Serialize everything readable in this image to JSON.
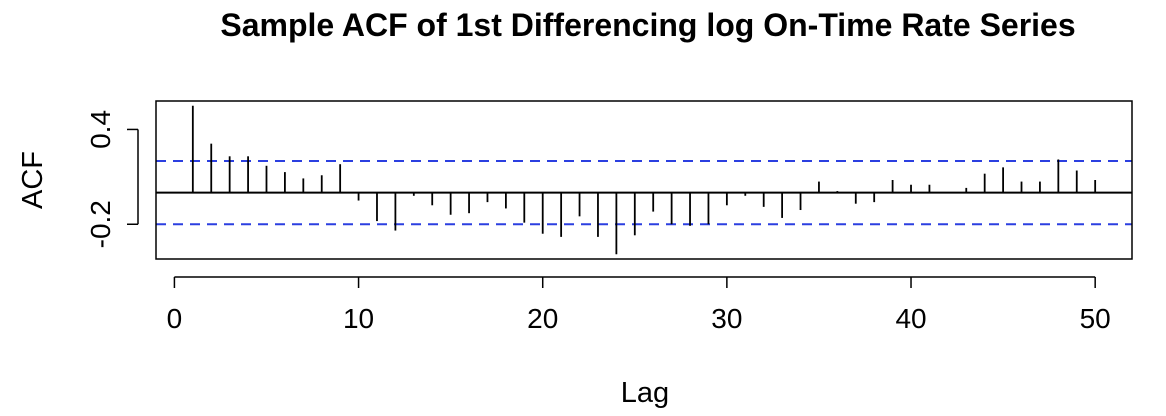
{
  "chart_data": {
    "type": "bar",
    "subtype": "acf-stem",
    "title": "Sample ACF of 1st Differencing log On-Time Rate Series",
    "xlabel": "Lag",
    "ylabel": "ACF",
    "xlim": [
      -1,
      52
    ],
    "ylim": [
      -0.42,
      0.58
    ],
    "x_ticks": [
      0,
      10,
      20,
      30,
      40,
      50
    ],
    "x_tick_labels": [
      "0",
      "10",
      "20",
      "30",
      "40",
      "50"
    ],
    "y_ticks": [
      -0.2,
      0.4
    ],
    "y_tick_labels": [
      "-0.2",
      "0.4"
    ],
    "confidence_bound": 0.2,
    "confidence_color": "#2b3fe0",
    "series": [
      {
        "lags": [
          1,
          2,
          3,
          4,
          5,
          6,
          7,
          8,
          9,
          10,
          11,
          12,
          13,
          14,
          15,
          16,
          17,
          18,
          19,
          20,
          21,
          22,
          23,
          24,
          25,
          26,
          27,
          28,
          29,
          30,
          31,
          32,
          33,
          34,
          35,
          36,
          37,
          38,
          39,
          40,
          41,
          42,
          43,
          44,
          45,
          46,
          47,
          48,
          49,
          50
        ],
        "values": [
          0.55,
          0.31,
          0.23,
          0.23,
          0.17,
          0.13,
          0.09,
          0.11,
          0.18,
          -0.05,
          -0.18,
          -0.24,
          -0.02,
          -0.08,
          -0.14,
          -0.13,
          -0.06,
          -0.1,
          -0.19,
          -0.26,
          -0.28,
          -0.15,
          -0.28,
          -0.39,
          -0.27,
          -0.12,
          -0.2,
          -0.21,
          -0.2,
          -0.08,
          -0.02,
          -0.09,
          -0.16,
          -0.11,
          0.07,
          0.01,
          -0.07,
          -0.06,
          0.08,
          0.05,
          0.05,
          0.0,
          0.03,
          0.12,
          0.16,
          0.07,
          0.07,
          0.21,
          0.14,
          0.08
        ]
      }
    ]
  }
}
